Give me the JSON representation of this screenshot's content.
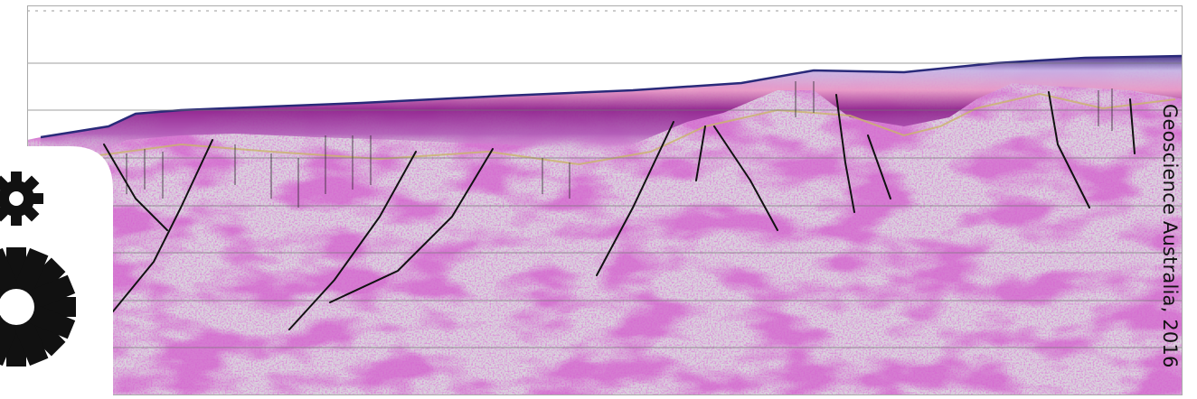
{
  "credit": "Geoscience Australia, 2016"
}
